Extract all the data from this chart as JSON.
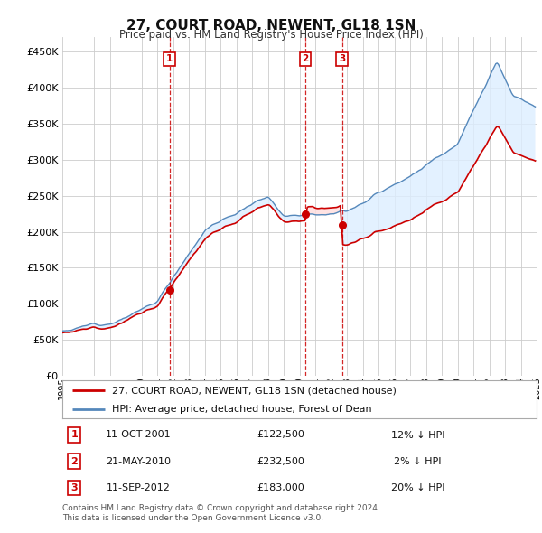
{
  "title": "27, COURT ROAD, NEWENT, GL18 1SN",
  "subtitle": "Price paid vs. HM Land Registry's House Price Index (HPI)",
  "legend_label_red": "27, COURT ROAD, NEWENT, GL18 1SN (detached house)",
  "legend_label_blue": "HPI: Average price, detached house, Forest of Dean",
  "footer1": "Contains HM Land Registry data © Crown copyright and database right 2024.",
  "footer2": "This data is licensed under the Open Government Licence v3.0.",
  "transactions": [
    {
      "num": 1,
      "date": "11-OCT-2001",
      "price": "£122,500",
      "hpi": "12% ↓ HPI",
      "year": 2001.78
    },
    {
      "num": 2,
      "date": "21-MAY-2010",
      "price": "£232,500",
      "hpi": "2% ↓ HPI",
      "year": 2010.38
    },
    {
      "num": 3,
      "date": "11-SEP-2012",
      "price": "£183,000",
      "hpi": "20% ↓ HPI",
      "year": 2012.69
    }
  ],
  "ylim": [
    0,
    470000
  ],
  "yticks": [
    0,
    50000,
    100000,
    150000,
    200000,
    250000,
    300000,
    350000,
    400000,
    450000
  ],
  "color_red": "#cc0000",
  "color_blue": "#5588bb",
  "color_fill_blue": "#ddeeff",
  "background_color": "#ffffff",
  "grid_color": "#cccccc",
  "xlim": [
    1995,
    2025
  ]
}
